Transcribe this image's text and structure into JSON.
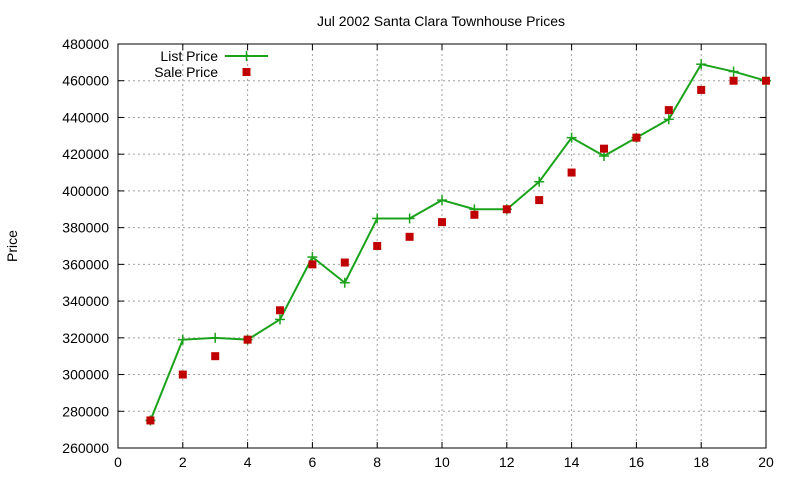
{
  "chart_data": {
    "type": "line",
    "title": "Jul 2002 Santa Clara Townhouse Prices",
    "xlabel": "",
    "ylabel": "Price",
    "xlim": [
      0,
      20
    ],
    "ylim": [
      260000,
      480000
    ],
    "x_ticks": [
      0,
      2,
      4,
      6,
      8,
      10,
      12,
      14,
      16,
      18,
      20
    ],
    "y_ticks": [
      260000,
      280000,
      300000,
      320000,
      340000,
      360000,
      380000,
      400000,
      420000,
      440000,
      460000,
      480000
    ],
    "grid": true,
    "legend_position": "top-left",
    "x": [
      1,
      2,
      3,
      4,
      5,
      6,
      7,
      8,
      9,
      10,
      11,
      12,
      13,
      14,
      15,
      16,
      17,
      18,
      19,
      20
    ],
    "series": [
      {
        "name": "List Price",
        "style": "linespoints",
        "marker": "plus",
        "color": "#1aa31a",
        "values": [
          275000,
          319000,
          320000,
          319000,
          330000,
          364000,
          350000,
          385000,
          385000,
          395000,
          390000,
          390000,
          405000,
          429000,
          419000,
          429000,
          439000,
          469000,
          465000,
          460000
        ]
      },
      {
        "name": "Sale Price",
        "style": "points",
        "marker": "square",
        "color": "#c00000",
        "values": [
          275000,
          300000,
          310000,
          319000,
          335000,
          360000,
          361000,
          370000,
          375000,
          383000,
          387000,
          390000,
          395000,
          410000,
          423000,
          429000,
          444000,
          455000,
          460000,
          460000
        ]
      }
    ]
  }
}
